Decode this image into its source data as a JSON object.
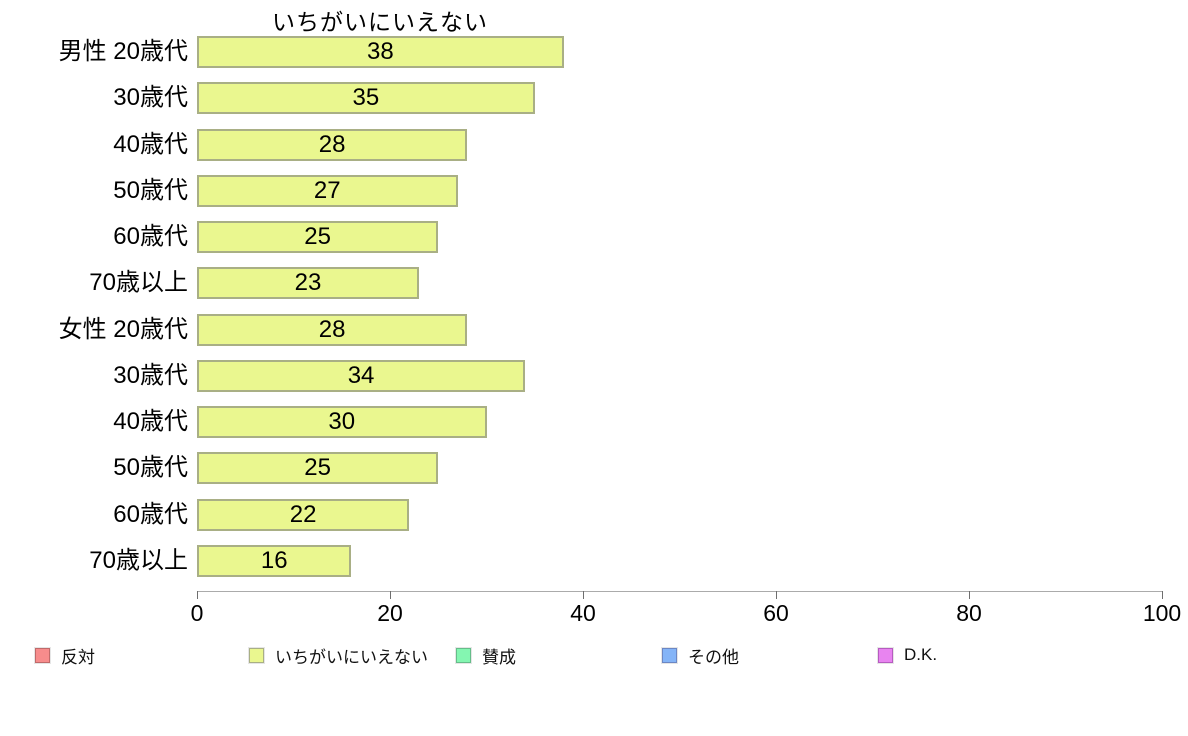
{
  "chart_data": {
    "type": "bar",
    "orientation": "horizontal",
    "title": "いちがいにいえない",
    "categories": [
      "男性 20歳代",
      "30歳代",
      "40歳代",
      "50歳代",
      "60歳代",
      "70歳以上",
      "女性 20歳代",
      "30歳代",
      "40歳代",
      "50歳代",
      "60歳代",
      "70歳以上"
    ],
    "values": [
      38,
      35,
      28,
      27,
      25,
      23,
      28,
      34,
      30,
      25,
      22,
      16
    ],
    "xlabel": "",
    "ylabel": "",
    "xlim": [
      0,
      100
    ],
    "x_ticks": [
      0,
      20,
      40,
      60,
      80,
      100
    ],
    "grid": false,
    "bar_fill_color": "#EAF78F",
    "bar_border_color": "#A9AF85",
    "axis_line_color": "#ababab",
    "legend_position": "bottom",
    "legend": [
      {
        "label": "反対",
        "color": "#F78C8C",
        "border": "#C06A6A"
      },
      {
        "label": "いちがいにいえない",
        "color": "#EAF78F",
        "border": "#A9AF85"
      },
      {
        "label": "賛成",
        "color": "#84F6B1",
        "border": "#66BD8A"
      },
      {
        "label": "その他",
        "color": "#84B4F7",
        "border": "#6C87C4"
      },
      {
        "label": "D.K.",
        "color": "#E884F0",
        "border": "#B65CC0"
      }
    ]
  }
}
